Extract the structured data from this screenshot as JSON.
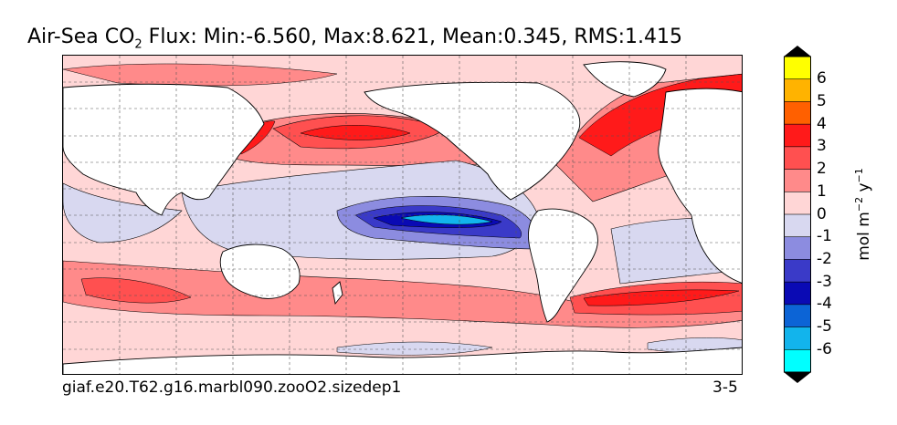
{
  "title": {
    "prefix": "Air-Sea CO",
    "subscript": "2",
    "suffix": " Flux: Min:-6.560, Max:8.621, Mean:0.345, RMS:1.415"
  },
  "case_name": "giaf.e20.T62.g16.marbl090.zooO2.sizedep1",
  "period": "3-5",
  "colorbar": {
    "label_parts": [
      "mol m",
      "−2",
      " y",
      "−1"
    ],
    "ticks": [
      "6",
      "5",
      "4",
      "3",
      "2",
      "1",
      "0",
      "-1",
      "-2",
      "-3",
      "-4",
      "-5",
      "-6"
    ],
    "colors_top_to_bottom": [
      "#ffff00",
      "#ffb300",
      "#ff6000",
      "#ff1a1a",
      "#ff5050",
      "#ff8a8a",
      "#ffd6d6",
      "#d8d8f0",
      "#8c8ce0",
      "#3a3ac8",
      "#0a0ab4",
      "#0c64d6",
      "#12b4ec",
      "#00ffff"
    ],
    "over_color": "#000000",
    "under_color": "#000000"
  },
  "colors": {
    "land": "#ffffff",
    "ocean_background": "#ffd6d6"
  }
}
